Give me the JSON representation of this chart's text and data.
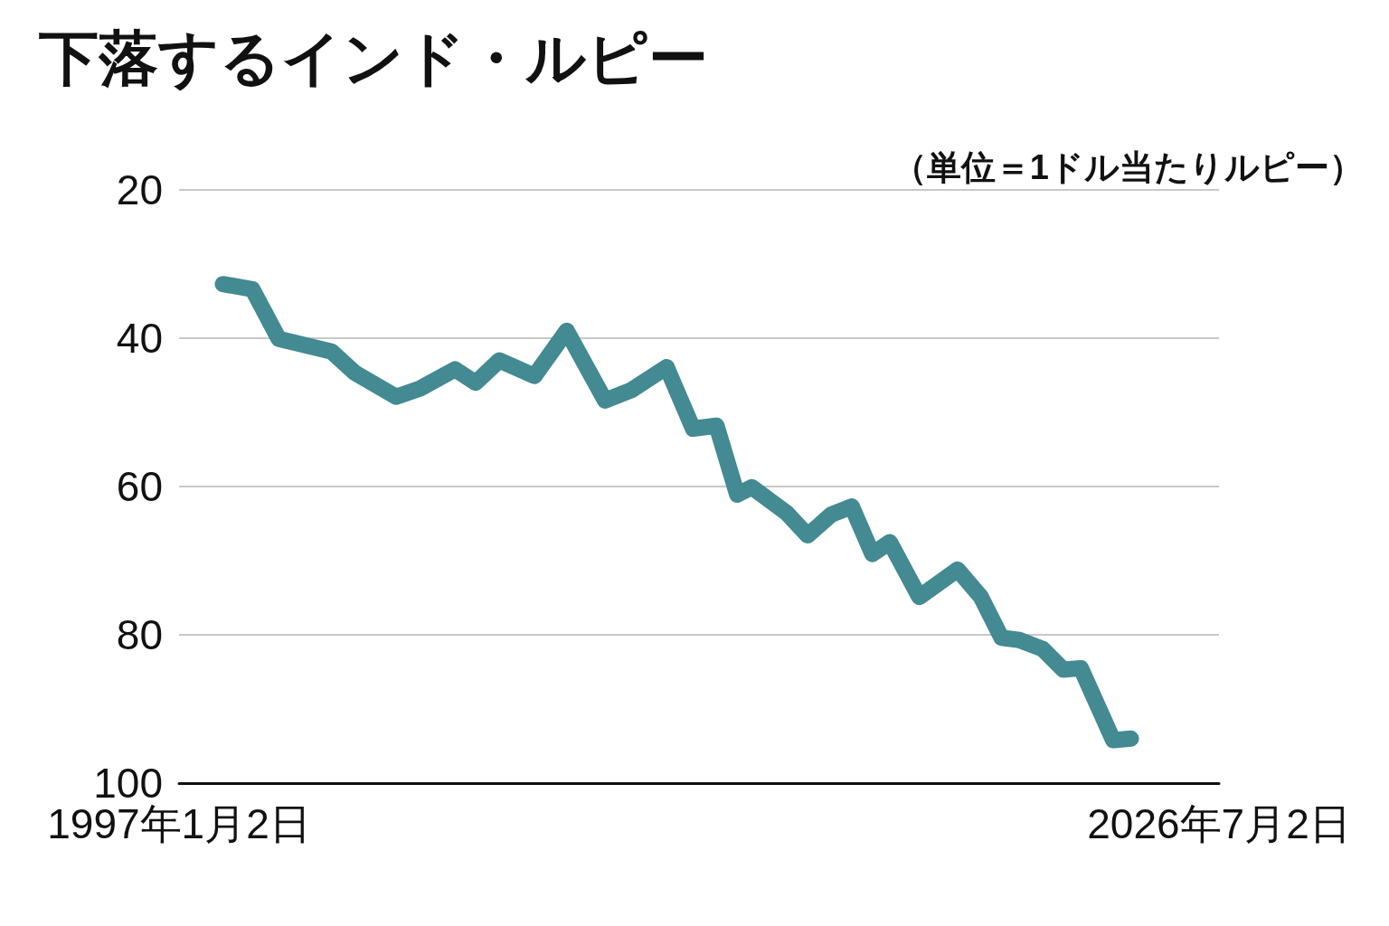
{
  "chart_data": {
    "type": "line",
    "title": "下落するインド・ルピー",
    "annotations": [
      "（単位＝1ドル当たりルピー）"
    ],
    "x": [
      "1998-04",
      "1999-02",
      "1999-11",
      "2001-05",
      "2002-01",
      "2003-03",
      "2003-11",
      "2004-11",
      "2005-06",
      "2006-02",
      "2007-02",
      "2008-01",
      "2009-02",
      "2009-11",
      "2010-11",
      "2011-08",
      "2012-04",
      "2012-11",
      "2013-04",
      "2014-04",
      "2014-11",
      "2015-07",
      "2016-02",
      "2016-09",
      "2017-03",
      "2018-01",
      "2019-02",
      "2019-10",
      "2020-05",
      "2020-11",
      "2021-07",
      "2022-02",
      "2022-08",
      "2023-07",
      "2024-01"
    ],
    "series": [
      {
        "color": "#438a92",
        "values": [
          32.7,
          33.4,
          40.1,
          41.8,
          44.7,
          47.9,
          46.8,
          44.2,
          46.0,
          43.0,
          45.1,
          39.0,
          48.4,
          47.0,
          43.9,
          52.2,
          51.8,
          61.1,
          60.1,
          63.6,
          66.6,
          63.8,
          62.7,
          69.1,
          67.5,
          74.9,
          71.2,
          74.9,
          80.4,
          80.7,
          81.9,
          84.7,
          84.5,
          94.2,
          94.0
        ]
      }
    ],
    "xlim": [
      "1997-01-02",
      "2026-07-02"
    ],
    "xticks": [
      {
        "value": "1997-01-02",
        "label": "1997年1月2日"
      },
      {
        "value": "2026-07-02",
        "label": "2026年7月2日"
      }
    ],
    "ylim": [
      100,
      20
    ],
    "yticks": [
      20,
      40,
      60,
      80,
      100
    ],
    "grid": "y",
    "line_style": "solid"
  }
}
